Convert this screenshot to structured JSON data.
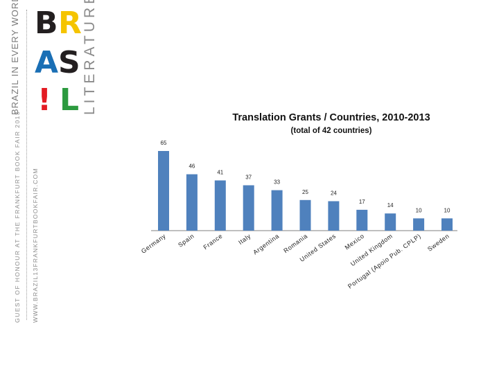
{
  "logo": {
    "letters": [
      "B",
      "R",
      "A",
      "S",
      "!",
      "L"
    ],
    "tagline": "BRAZIL IN EVERY WORD",
    "word": "LITERATURE"
  },
  "sidebar": {
    "guest_text": "GUEST OF HONOUR AT THE FRANKFURT BOOK FAIR 2013",
    "url_text": "WWW.BRAZIL13FRANKFURTBOOKFAIR.COM"
  },
  "colors": {
    "bar": "#4f81bd",
    "axis": "#7f7f7f",
    "letter_b": "#231f20",
    "letter_r": "#f5c400",
    "letter_a": "#1a6fb5",
    "letter_s": "#231f20",
    "letter_excl": "#e31b23",
    "letter_l": "#2c9a3f"
  },
  "chart_data": {
    "type": "bar",
    "title": "Translation Grants / Countries, 2010-2013",
    "subtitle": "(total of 42 countries)",
    "categories": [
      "Germany",
      "Spain",
      "France",
      "Italy",
      "Argentina",
      "Romania",
      "United States",
      "Mexico",
      "United Kingdom",
      "Portugal (Apoio Pub. CPLP)",
      "Sweden"
    ],
    "values": [
      65,
      46,
      41,
      37,
      33,
      25,
      24,
      17,
      14,
      10,
      10
    ],
    "ylim": [
      0,
      65
    ],
    "xlabel": "",
    "ylabel": "",
    "grid": false,
    "legend": "none"
  }
}
